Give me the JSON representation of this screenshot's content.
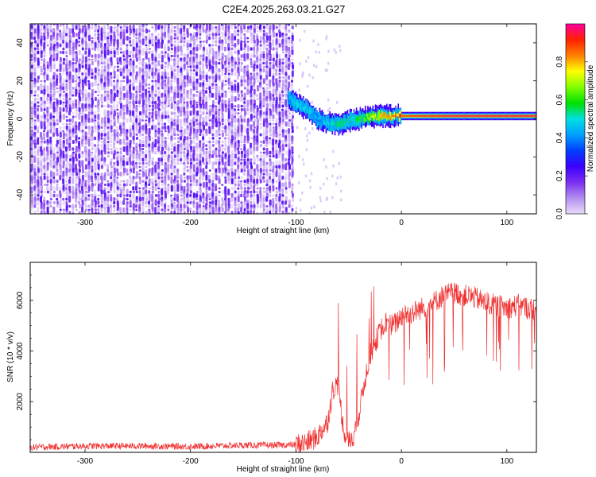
{
  "title": "C2E4.2025.263.03.21.G27",
  "spectrogram": {
    "type": "heatmap",
    "xlabel": "Height of straight line (km)",
    "ylabel": "Frequency (Hz)",
    "xlim": [
      -352,
      128
    ],
    "ylim": [
      -50,
      50
    ],
    "xticks": [
      -300,
      -200,
      -100,
      0,
      100
    ],
    "yticks": [
      -40,
      -20,
      0,
      20,
      40
    ],
    "colorbar": {
      "label": "Normalized spectral amplitude",
      "range": [
        0,
        1
      ],
      "ticks": [
        "0.0",
        "0.2",
        "0.4",
        "0.6",
        "0.8"
      ],
      "colors": [
        "#e8dcf8",
        "#b48ef0",
        "#7a2ef0",
        "#3c00ff",
        "#0040ff",
        "#00a0ff",
        "#00e0e0",
        "#00e000",
        "#80ff00",
        "#ffff00",
        "#ff8000",
        "#ff2000",
        "#ff00a0"
      ]
    },
    "noise_region": {
      "x_range": [
        -352,
        -103
      ],
      "amplitude_range": [
        0.0,
        0.22
      ]
    },
    "signal_track": [
      {
        "x": -108,
        "freq": 11,
        "amp": 0.45
      },
      {
        "x": -100,
        "freq": 8,
        "amp": 0.5
      },
      {
        "x": -90,
        "freq": 5,
        "amp": 0.5
      },
      {
        "x": -80,
        "freq": 0,
        "amp": 0.45
      },
      {
        "x": -70,
        "freq": -2,
        "amp": 0.5
      },
      {
        "x": -60,
        "freq": -3,
        "amp": 0.55
      },
      {
        "x": -50,
        "freq": -1,
        "amp": 0.55
      },
      {
        "x": -40,
        "freq": 0,
        "amp": 0.6
      },
      {
        "x": -30,
        "freq": 1,
        "amp": 0.7
      },
      {
        "x": -20,
        "freq": 1.5,
        "amp": 0.8
      },
      {
        "x": -10,
        "freq": 1.5,
        "amp": 0.85
      },
      {
        "x": 0,
        "freq": 1.5,
        "amp": 0.9
      },
      {
        "x": 50,
        "freq": 1.5,
        "amp": 0.95
      },
      {
        "x": 100,
        "freq": 1.5,
        "amp": 0.95
      },
      {
        "x": 128,
        "freq": 1.5,
        "amp": 0.95
      }
    ]
  },
  "chart_data": {
    "type": "line",
    "xlabel": "Height of straight line (km)",
    "ylabel": "SNR (10 * v/v)",
    "xlim": [
      -352,
      128
    ],
    "ylim": [
      0,
      7500
    ],
    "xticks": [
      -300,
      -200,
      -100,
      0,
      100
    ],
    "yticks": [
      2000,
      4000,
      6000
    ],
    "series": [
      {
        "color": "#f03030",
        "x": [
          -352,
          -300,
          -250,
          -200,
          -150,
          -120,
          -100,
          -90,
          -80,
          -70,
          -65,
          -60,
          -55,
          -50,
          -45,
          -40,
          -35,
          -30,
          -25,
          -20,
          -15,
          -10,
          -5,
          0,
          10,
          20,
          30,
          40,
          50,
          60,
          70,
          80,
          90,
          100,
          110,
          120,
          128
        ],
        "y": [
          200,
          250,
          250,
          230,
          280,
          280,
          300,
          380,
          600,
          1200,
          2500,
          2700,
          900,
          400,
          700,
          1600,
          2800,
          3800,
          4300,
          4800,
          5200,
          5000,
          5100,
          5400,
          5500,
          5700,
          5900,
          6200,
          6300,
          6200,
          6100,
          5900,
          5800,
          5700,
          5800,
          5700,
          5600
        ]
      }
    ]
  }
}
